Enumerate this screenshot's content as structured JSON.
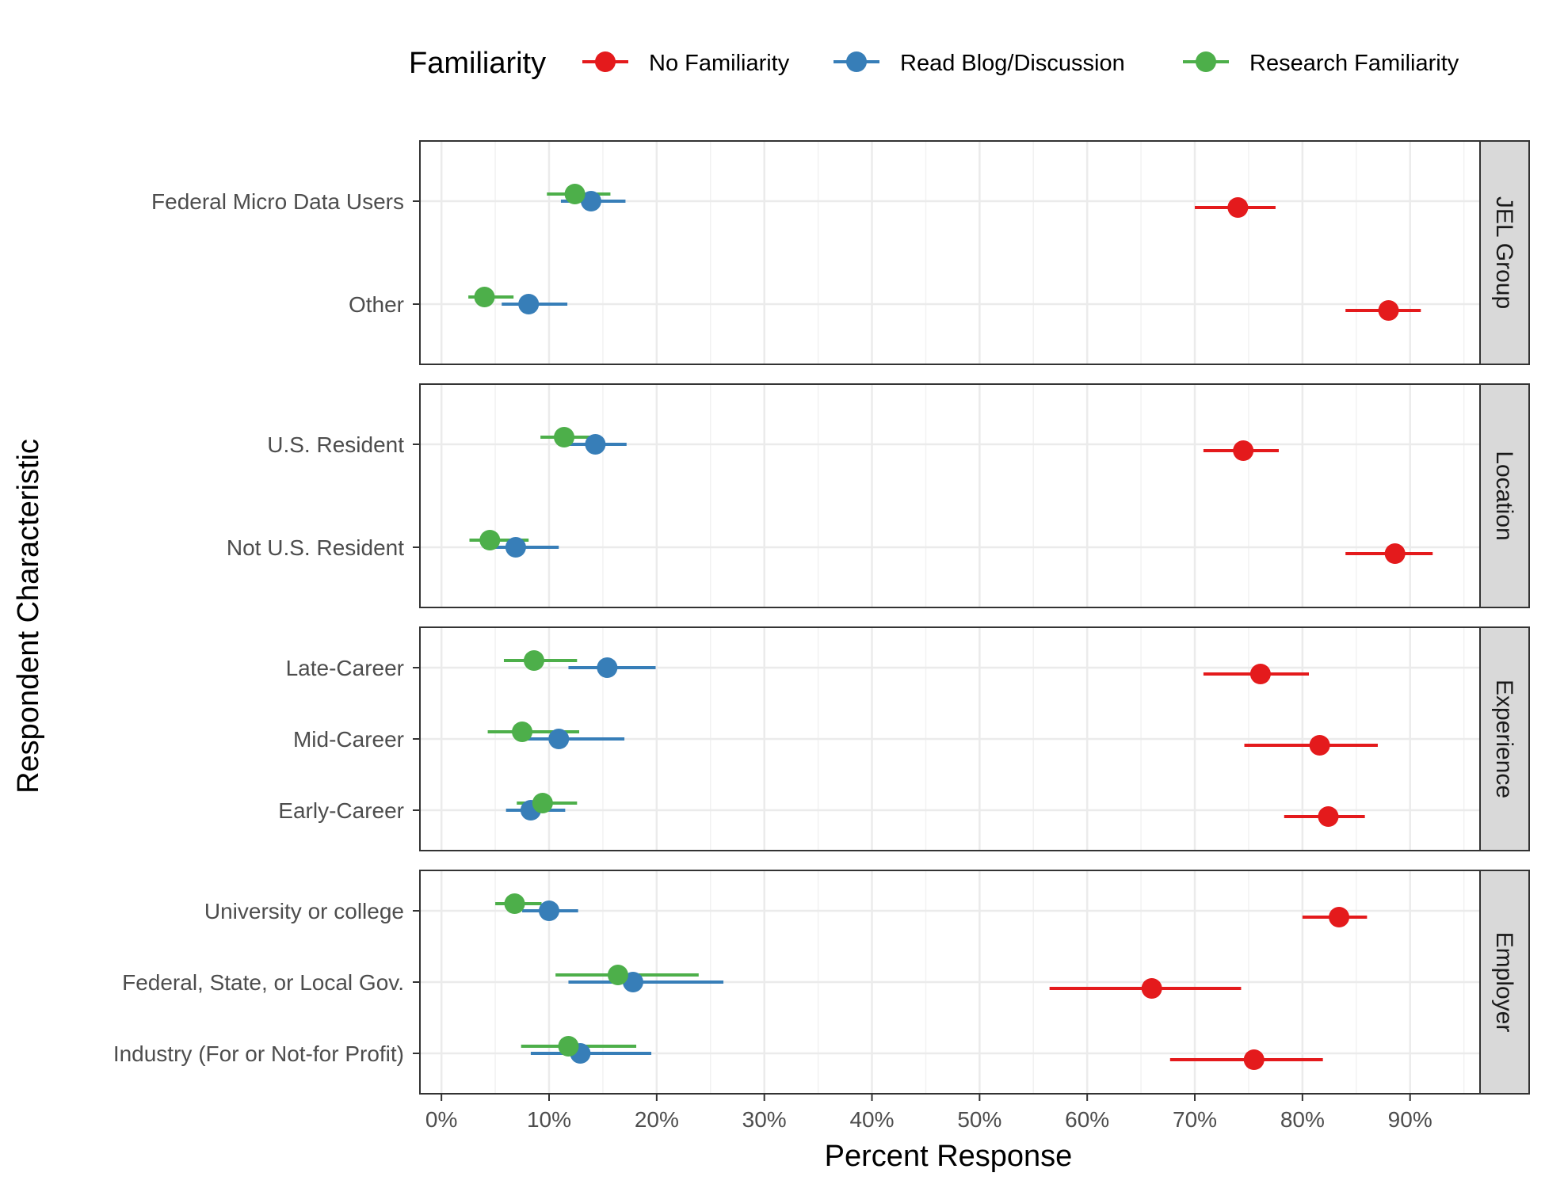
{
  "chart_data": {
    "type": "scatter",
    "subtype": "dot-and-whisker (point estimate with interval), faceted",
    "xlabel": "Percent Response",
    "ylabel": "Respondent Characteristic",
    "xlim": [
      -0.02,
      0.965
    ],
    "x_ticks": [
      0,
      0.1,
      0.2,
      0.3,
      0.4,
      0.5,
      0.6,
      0.7,
      0.8,
      0.9
    ],
    "x_tick_labels": [
      "0%",
      "10%",
      "20%",
      "30%",
      "40%",
      "50%",
      "60%",
      "70%",
      "80%",
      "90%"
    ],
    "grid": true,
    "legend": {
      "title": "Familiarity",
      "position": "top",
      "series": [
        {
          "name": "No Familiarity",
          "color": "#e41a1c"
        },
        {
          "name": "Read Blog/Discussion",
          "color": "#377eb8"
        },
        {
          "name": "Research Familiarity",
          "color": "#4daf4a"
        }
      ]
    },
    "facets": [
      {
        "strip": "JEL Group",
        "categories": [
          "Federal Micro Data Users",
          "Other"
        ],
        "series": [
          {
            "name": "No Familiarity",
            "points": [
              {
                "category": "Federal Micro Data Users",
                "value": 0.74,
                "low": 0.7,
                "high": 0.775
              },
              {
                "category": "Other",
                "value": 0.88,
                "low": 0.84,
                "high": 0.91
              }
            ]
          },
          {
            "name": "Read Blog/Discussion",
            "points": [
              {
                "category": "Federal Micro Data Users",
                "value": 0.139,
                "low": 0.111,
                "high": 0.171
              },
              {
                "category": "Other",
                "value": 0.081,
                "low": 0.056,
                "high": 0.117
              }
            ]
          },
          {
            "name": "Research Familiarity",
            "points": [
              {
                "category": "Federal Micro Data Users",
                "value": 0.124,
                "low": 0.098,
                "high": 0.157
              },
              {
                "category": "Other",
                "value": 0.04,
                "low": 0.025,
                "high": 0.067
              }
            ]
          }
        ]
      },
      {
        "strip": "Location",
        "categories": [
          "U.S. Resident",
          "Not U.S. Resident"
        ],
        "series": [
          {
            "name": "No Familiarity",
            "points": [
              {
                "category": "U.S. Resident",
                "value": 0.745,
                "low": 0.708,
                "high": 0.778
              },
              {
                "category": "Not U.S. Resident",
                "value": 0.886,
                "low": 0.84,
                "high": 0.921
              }
            ]
          },
          {
            "name": "Read Blog/Discussion",
            "points": [
              {
                "category": "U.S. Resident",
                "value": 0.143,
                "low": 0.119,
                "high": 0.172
              },
              {
                "category": "Not U.S. Resident",
                "value": 0.069,
                "low": 0.044,
                "high": 0.109
              }
            ]
          },
          {
            "name": "Research Familiarity",
            "points": [
              {
                "category": "U.S. Resident",
                "value": 0.114,
                "low": 0.092,
                "high": 0.14
              },
              {
                "category": "Not U.S. Resident",
                "value": 0.045,
                "low": 0.026,
                "high": 0.081
              }
            ]
          }
        ]
      },
      {
        "strip": "Experience",
        "categories": [
          "Late-Career",
          "Mid-Career",
          "Early-Career"
        ],
        "series": [
          {
            "name": "No Familiarity",
            "points": [
              {
                "category": "Late-Career",
                "value": 0.761,
                "low": 0.708,
                "high": 0.806
              },
              {
                "category": "Mid-Career",
                "value": 0.816,
                "low": 0.746,
                "high": 0.87
              },
              {
                "category": "Early-Career",
                "value": 0.824,
                "low": 0.783,
                "high": 0.858
              }
            ]
          },
          {
            "name": "Read Blog/Discussion",
            "points": [
              {
                "category": "Late-Career",
                "value": 0.154,
                "low": 0.118,
                "high": 0.199
              },
              {
                "category": "Mid-Career",
                "value": 0.109,
                "low": 0.071,
                "high": 0.17
              },
              {
                "category": "Early-Career",
                "value": 0.083,
                "low": 0.06,
                "high": 0.115
              }
            ]
          },
          {
            "name": "Research Familiarity",
            "points": [
              {
                "category": "Late-Career",
                "value": 0.086,
                "low": 0.058,
                "high": 0.126
              },
              {
                "category": "Mid-Career",
                "value": 0.075,
                "low": 0.043,
                "high": 0.128
              },
              {
                "category": "Early-Career",
                "value": 0.094,
                "low": 0.07,
                "high": 0.126
              }
            ]
          }
        ]
      },
      {
        "strip": "Employer",
        "categories": [
          "University or college",
          "Federal, State, or Local Gov.",
          "Industry (For or Not-for Profit)"
        ],
        "series": [
          {
            "name": "No Familiarity",
            "points": [
              {
                "category": "University or college",
                "value": 0.834,
                "low": 0.8,
                "high": 0.86
              },
              {
                "category": "Federal, State, or Local Gov.",
                "value": 0.66,
                "low": 0.565,
                "high": 0.743
              },
              {
                "category": "Industry (For or Not-for Profit)",
                "value": 0.755,
                "low": 0.677,
                "high": 0.819
              }
            ]
          },
          {
            "name": "Read Blog/Discussion",
            "points": [
              {
                "category": "University or college",
                "value": 0.1,
                "low": 0.075,
                "high": 0.127
              },
              {
                "category": "Federal, State, or Local Gov.",
                "value": 0.178,
                "low": 0.118,
                "high": 0.262
              },
              {
                "category": "Industry (For or Not-for Profit)",
                "value": 0.129,
                "low": 0.083,
                "high": 0.195
              }
            ]
          },
          {
            "name": "Research Familiarity",
            "points": [
              {
                "category": "University or college",
                "value": 0.068,
                "low": 0.05,
                "high": 0.093
              },
              {
                "category": "Federal, State, or Local Gov.",
                "value": 0.164,
                "low": 0.106,
                "high": 0.239
              },
              {
                "category": "Industry (For or Not-for Profit)",
                "value": 0.118,
                "low": 0.074,
                "high": 0.181
              }
            ]
          }
        ]
      }
    ]
  }
}
